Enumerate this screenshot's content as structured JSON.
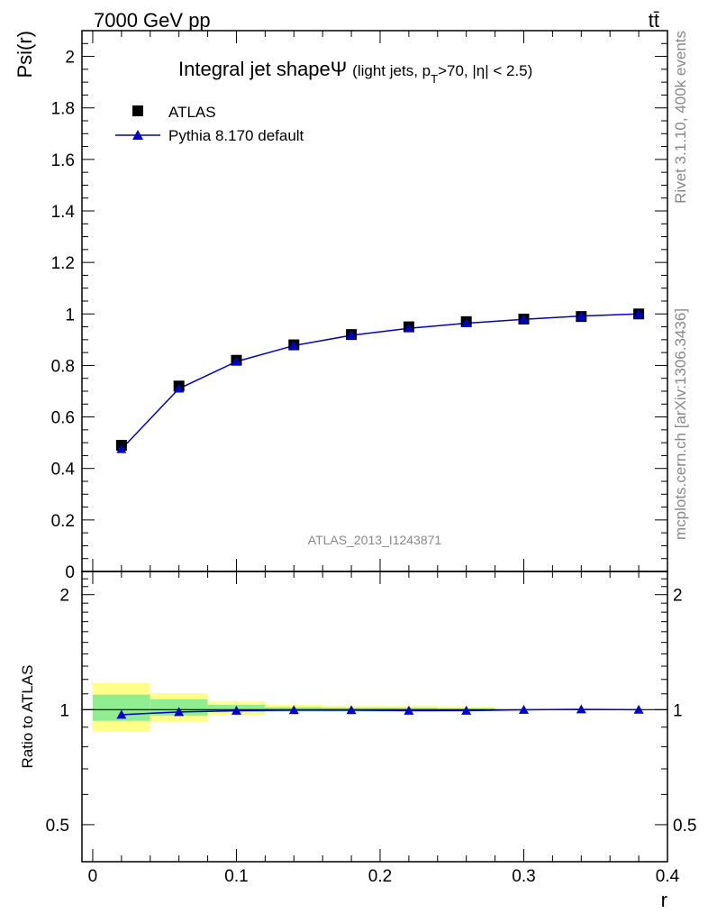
{
  "header": {
    "left": "7000 GeV pp",
    "right": "tt̄"
  },
  "side_labels": {
    "rivet": "Rivet 3.1.10,  400k events",
    "mcplots": "mcplots.cern.ch [arXiv:1306.3436]"
  },
  "chart_data": [
    {
      "type": "scatter",
      "title": "Integral jet shapeΨ",
      "subtitle": "(light jets, p",
      "subtitle_sub": "T",
      "subtitle_tail": ">70, |η| < 2.5)",
      "ylabel": "Psi(r)",
      "xlabel": "",
      "watermark": "ATLAS_2013_I1243871",
      "xlim": [
        -0.0075,
        0.4
      ],
      "ylim": [
        0,
        2.1
      ],
      "yticks": [
        0,
        0.2,
        0.4,
        0.6,
        0.8,
        1,
        1.2,
        1.4,
        1.6,
        1.8,
        2
      ],
      "ytick_labels": [
        "0",
        "0.2",
        "0.4",
        "0.6",
        "0.8",
        "1",
        "1.2",
        "1.4",
        "1.6",
        "1.8",
        "2"
      ],
      "legend_position": "top-left",
      "x": [
        0.02,
        0.06,
        0.1,
        0.14,
        0.18,
        0.22,
        0.26,
        0.3,
        0.34,
        0.38
      ],
      "series": [
        {
          "name": "ATLAS",
          "marker": "square",
          "color": "#000000",
          "values": [
            0.49,
            0.72,
            0.82,
            0.88,
            0.92,
            0.95,
            0.97,
            0.98,
            0.99,
            1.0
          ]
        },
        {
          "name": "Pythia 8.170 default",
          "marker": "triangle",
          "color": "#0000cc",
          "values": [
            0.475,
            0.71,
            0.815,
            0.877,
            0.917,
            0.944,
            0.964,
            0.979,
            0.992,
            1.0
          ]
        }
      ]
    },
    {
      "type": "scatter",
      "title": "",
      "ylabel": "Ratio to ATLAS",
      "xlabel": "r",
      "xlim": [
        -0.0075,
        0.4
      ],
      "ylim": [
        0.4,
        2.3
      ],
      "yticks": [
        0.5,
        1,
        2
      ],
      "ytick_labels": [
        "0.5",
        "1",
        "2"
      ],
      "xticks": [
        0,
        0.1,
        0.2,
        0.3,
        0.4
      ],
      "xtick_labels": [
        "0",
        "0.1",
        "0.2",
        "0.3",
        "0.4"
      ],
      "x": [
        0.02,
        0.06,
        0.1,
        0.14,
        0.18,
        0.22,
        0.26,
        0.3,
        0.34,
        0.38
      ],
      "bands": {
        "x_edges": [
          0.0,
          0.04,
          0.08,
          0.12,
          0.16,
          0.2,
          0.24,
          0.28
        ],
        "yellow": [
          [
            0.875,
            1.175
          ],
          [
            0.93,
            1.105
          ],
          [
            0.965,
            1.05
          ],
          [
            0.985,
            1.03
          ],
          [
            0.985,
            1.025
          ],
          [
            0.985,
            1.025
          ],
          [
            0.99,
            1.02
          ]
        ],
        "green": [
          [
            0.935,
            1.095
          ],
          [
            0.965,
            1.065
          ],
          [
            0.985,
            1.03
          ],
          [
            0.99,
            1.015
          ],
          [
            0.99,
            1.012
          ],
          [
            0.99,
            1.012
          ],
          [
            0.995,
            1.008
          ]
        ],
        "colors": {
          "yellow": "#ffff8a",
          "green": "#90ee90"
        }
      },
      "series": [
        {
          "name": "Pythia 8.170 default",
          "marker": "triangle",
          "color": "#0000cc",
          "values": [
            0.97,
            0.986,
            0.994,
            0.997,
            0.997,
            0.994,
            0.994,
            0.999,
            1.002,
            1.0
          ]
        }
      ]
    }
  ]
}
